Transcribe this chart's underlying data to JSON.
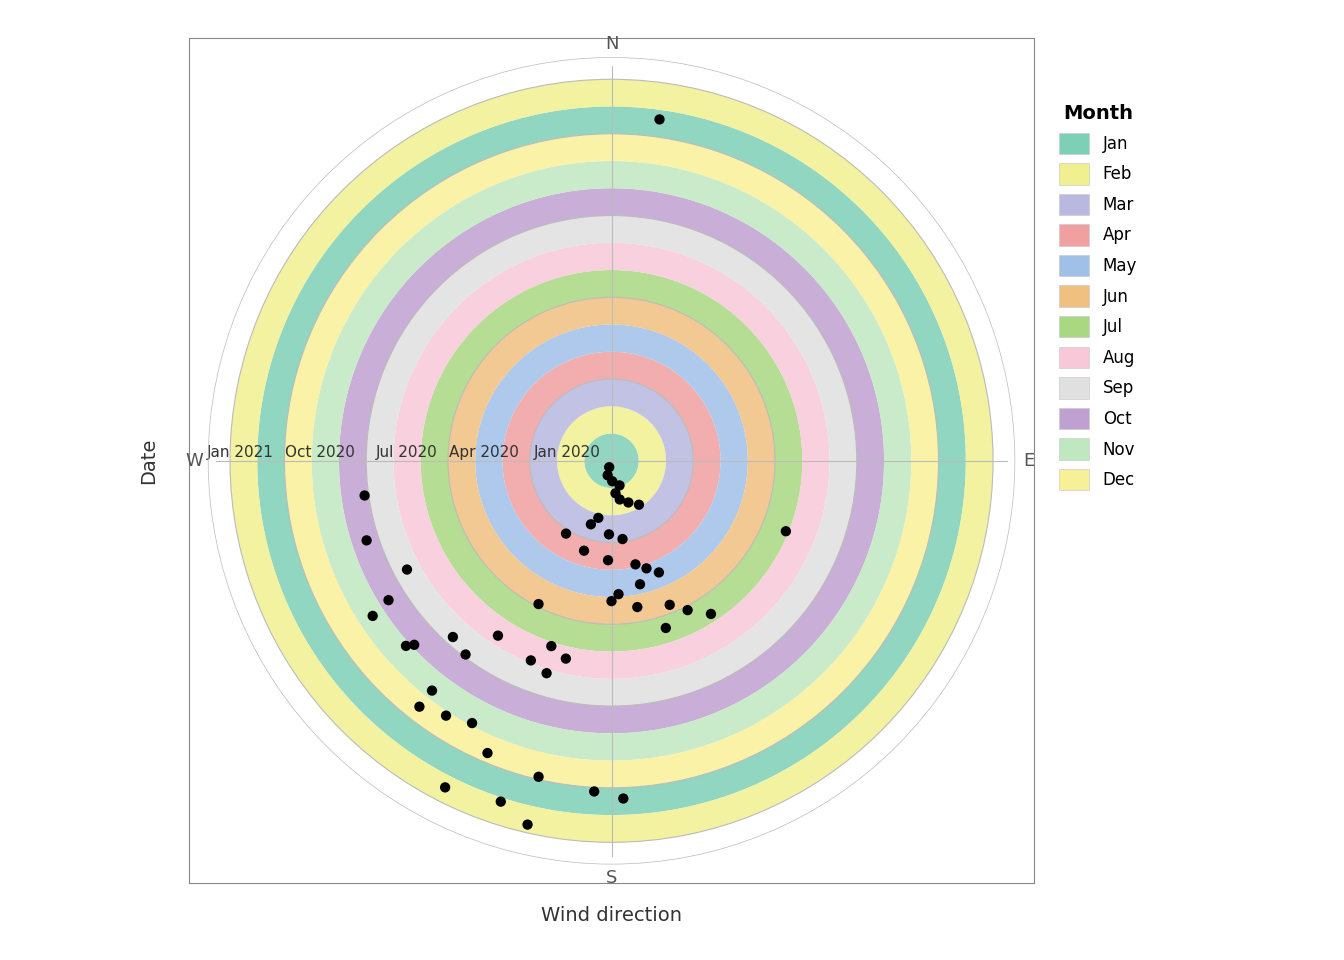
{
  "xlabel": "Wind direction",
  "ylabel": "Date",
  "months": [
    "Jan",
    "Feb",
    "Mar",
    "Apr",
    "May",
    "Jun",
    "Jul",
    "Aug",
    "Sep",
    "Oct",
    "Nov",
    "Dec"
  ],
  "month_colors_list": [
    "#7DCFB6",
    "#F0F090",
    "#B8B8E0",
    "#F0A0A0",
    "#A0C0E8",
    "#F0C080",
    "#A8D880",
    "#F8C8D8",
    "#E0E0E0",
    "#C0A0D0",
    "#C0E8C0",
    "#F8F098"
  ],
  "bg_color": "#FFFFFF",
  "grid_color": "#BBBBBB",
  "dot_color": "#000000",
  "dot_size": 55,
  "compass_labels": [
    "N",
    "E",
    "S",
    "W"
  ],
  "compass_math_angles": [
    90,
    0,
    270,
    180
  ],
  "date_tick_labels": [
    "Jan 2020",
    "Apr 2020",
    "Jul 2020",
    "Oct 2020",
    "Jan 2021"
  ],
  "date_tick_radii": [
    0,
    3,
    6,
    9,
    12
  ],
  "data_points": [
    {
      "r": 0.25,
      "compass": 200
    },
    {
      "r": 0.55,
      "compass": 195
    },
    {
      "r": 0.75,
      "compass": 178
    },
    {
      "r": 0.95,
      "compass": 162
    },
    {
      "r": 1.2,
      "compass": 173
    },
    {
      "r": 1.45,
      "compass": 168
    },
    {
      "r": 1.65,
      "compass": 158
    },
    {
      "r": 1.9,
      "compass": 148
    },
    {
      "r": 2.15,
      "compass": 193
    },
    {
      "r": 2.45,
      "compass": 198
    },
    {
      "r": 2.7,
      "compass": 182
    },
    {
      "r": 2.9,
      "compass": 172
    },
    {
      "r": 3.15,
      "compass": 212
    },
    {
      "r": 3.45,
      "compass": 197
    },
    {
      "r": 3.65,
      "compass": 182
    },
    {
      "r": 3.9,
      "compass": 167
    },
    {
      "r": 4.15,
      "compass": 162
    },
    {
      "r": 4.45,
      "compass": 157
    },
    {
      "r": 4.65,
      "compass": 167
    },
    {
      "r": 4.9,
      "compass": 177
    },
    {
      "r": 5.15,
      "compass": 180
    },
    {
      "r": 5.45,
      "compass": 170
    },
    {
      "r": 5.7,
      "compass": 158
    },
    {
      "r": 5.9,
      "compass": 207
    },
    {
      "r": 6.15,
      "compass": 153
    },
    {
      "r": 6.45,
      "compass": 162
    },
    {
      "r": 6.7,
      "compass": 147
    },
    {
      "r": 6.9,
      "compass": 112
    },
    {
      "r": 7.15,
      "compass": 198
    },
    {
      "r": 7.45,
      "compass": 193
    },
    {
      "r": 7.65,
      "compass": 213
    },
    {
      "r": 7.9,
      "compass": 202
    },
    {
      "r": 8.15,
      "compass": 197
    },
    {
      "r": 8.5,
      "compass": 242
    },
    {
      "r": 8.7,
      "compass": 222
    },
    {
      "r": 8.9,
      "compass": 217
    },
    {
      "r": 9.15,
      "compass": 262
    },
    {
      "r": 9.45,
      "compass": 252
    },
    {
      "r": 9.65,
      "compass": 238
    },
    {
      "r": 9.9,
      "compass": 227
    },
    {
      "r": 10.15,
      "compass": 228
    },
    {
      "r": 10.45,
      "compass": 237
    },
    {
      "r": 10.7,
      "compass": 218
    },
    {
      "r": 10.9,
      "compass": 208
    },
    {
      "r": 11.15,
      "compass": 213
    },
    {
      "r": 11.45,
      "compass": 218
    },
    {
      "r": 11.65,
      "compass": 203
    },
    {
      "r": 11.9,
      "compass": 193
    },
    {
      "r": 12.15,
      "compass": 183
    },
    {
      "r": 12.4,
      "compass": 178
    },
    {
      "r": 12.65,
      "compass": 8
    },
    {
      "r": 13.15,
      "compass": 198
    },
    {
      "r": 13.45,
      "compass": 207
    },
    {
      "r": 13.7,
      "compass": 193
    }
  ]
}
